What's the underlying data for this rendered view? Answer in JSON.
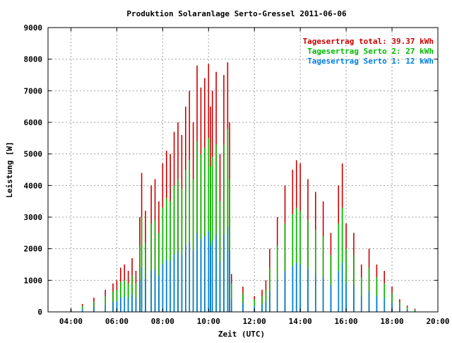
{
  "chart_data": {
    "type": "bar",
    "title": "Produktion Solaranlage Serto-Gressel 2011-06-06",
    "xlabel": "Zeit (UTC)",
    "ylabel": "Leistung [W]",
    "xlim_hours": [
      3,
      20
    ],
    "ylim": [
      0,
      9000
    ],
    "x_ticks": [
      "04:00",
      "06:00",
      "08:00",
      "10:00",
      "12:00",
      "14:00",
      "16:00",
      "18:00",
      "20:00"
    ],
    "y_ticks": [
      "0",
      "1000",
      "2000",
      "3000",
      "4000",
      "5000",
      "6000",
      "7000",
      "8000",
      "9000"
    ],
    "grid": true,
    "legend_position": "top-right",
    "colors": {
      "total": "#cc0000",
      "serto2": "#00bb00",
      "serto1": "#0080e0",
      "axis": "#000000",
      "grid": "#a0a0a0"
    },
    "legend": [
      {
        "label": "Tagesertrag total: 39.37 kWh",
        "color": "#cc0000"
      },
      {
        "label": "Tagesertrag Serto 2: 27 kWh",
        "color": "#00bb00"
      },
      {
        "label": "Tagesertrag Serto 1: 12 kWh",
        "color": "#0080e0"
      }
    ],
    "series": [
      {
        "name": "Tagesertrag total",
        "color": "#cc0000",
        "x": [
          "04:00",
          "04:30",
          "05:00",
          "05:30",
          "05:50",
          "06:00",
          "06:10",
          "06:20",
          "06:30",
          "06:40",
          "06:50",
          "07:00",
          "07:05",
          "07:15",
          "07:30",
          "07:40",
          "07:50",
          "08:00",
          "08:10",
          "08:20",
          "08:30",
          "08:40",
          "08:50",
          "09:00",
          "09:10",
          "09:20",
          "09:30",
          "09:40",
          "09:50",
          "10:00",
          "10:05",
          "10:10",
          "10:20",
          "10:30",
          "10:40",
          "10:50",
          "10:55",
          "11:00",
          "11:30",
          "12:00",
          "12:20",
          "12:30",
          "12:40",
          "13:00",
          "13:20",
          "13:40",
          "13:50",
          "14:00",
          "14:20",
          "14:40",
          "15:00",
          "15:20",
          "15:40",
          "15:50",
          "16:00",
          "16:20",
          "16:40",
          "17:00",
          "17:20",
          "17:40",
          "18:00",
          "18:20",
          "18:40",
          "19:00"
        ],
        "values": [
          100,
          250,
          450,
          700,
          900,
          1000,
          1400,
          1500,
          1300,
          1700,
          1300,
          3000,
          4400,
          3200,
          4000,
          4200,
          3500,
          4700,
          5100,
          5000,
          5700,
          6000,
          5600,
          6500,
          7000,
          6000,
          7800,
          7100,
          7400,
          7850,
          6500,
          7000,
          7600,
          5000,
          7500,
          7900,
          6000,
          1200,
          800,
          500,
          700,
          1000,
          2000,
          3000,
          4000,
          4500,
          4800,
          4700,
          4200,
          3800,
          3500,
          2500,
          4000,
          4700,
          2800,
          2500,
          1500,
          2000,
          1500,
          1300,
          800,
          400,
          200,
          100
        ]
      },
      {
        "name": "Tagesertrag Serto 2",
        "color": "#00bb00",
        "x": [
          "04:00",
          "04:30",
          "05:00",
          "05:30",
          "05:50",
          "06:00",
          "06:10",
          "06:20",
          "06:30",
          "06:40",
          "06:50",
          "07:00",
          "07:05",
          "07:15",
          "07:30",
          "07:40",
          "07:50",
          "08:00",
          "08:10",
          "08:20",
          "08:30",
          "08:40",
          "08:50",
          "09:00",
          "09:10",
          "09:20",
          "09:30",
          "09:40",
          "09:50",
          "10:00",
          "10:05",
          "10:10",
          "10:20",
          "10:30",
          "10:40",
          "10:50",
          "10:55",
          "11:00",
          "11:30",
          "12:00",
          "12:20",
          "12:30",
          "12:40",
          "13:00",
          "13:20",
          "13:40",
          "13:50",
          "14:00",
          "14:20",
          "14:40",
          "15:00",
          "15:20",
          "15:40",
          "15:50",
          "16:00",
          "16:20",
          "16:40",
          "17:00",
          "17:20",
          "17:40",
          "18:00",
          "18:20",
          "18:40",
          "19:00"
        ],
        "values": [
          80,
          180,
          320,
          500,
          650,
          700,
          950,
          1000,
          900,
          1150,
          900,
          2100,
          3000,
          2200,
          2800,
          2900,
          2500,
          3300,
          3600,
          3500,
          4000,
          4200,
          3900,
          4500,
          4800,
          4200,
          5400,
          5000,
          5200,
          5500,
          4600,
          4900,
          5300,
          3500,
          5300,
          5800,
          4200,
          900,
          600,
          400,
          500,
          700,
          1400,
          2100,
          2800,
          3100,
          3300,
          3200,
          2900,
          2600,
          2400,
          1800,
          2800,
          3300,
          2000,
          1800,
          1100,
          1400,
          1100,
          900,
          600,
          300,
          150,
          70
        ]
      },
      {
        "name": "Tagesertrag Serto 1",
        "color": "#0080e0",
        "x": [
          "04:00",
          "04:30",
          "05:00",
          "05:30",
          "05:50",
          "06:00",
          "06:10",
          "06:20",
          "06:30",
          "06:40",
          "06:50",
          "07:00",
          "07:05",
          "07:15",
          "07:30",
          "07:40",
          "07:50",
          "08:00",
          "08:10",
          "08:20",
          "08:30",
          "08:40",
          "08:50",
          "09:00",
          "09:10",
          "09:20",
          "09:30",
          "09:40",
          "09:50",
          "10:00",
          "10:05",
          "10:10",
          "10:20",
          "10:30",
          "10:40",
          "10:50",
          "10:55",
          "11:00",
          "11:30",
          "12:00",
          "12:20",
          "12:30",
          "12:40",
          "13:00",
          "13:20",
          "13:40",
          "13:50",
          "14:00",
          "14:20",
          "14:40",
          "15:00",
          "15:20",
          "15:40",
          "15:50",
          "16:00",
          "16:20",
          "16:40",
          "17:00",
          "17:20",
          "17:40",
          "18:00",
          "18:20",
          "18:40",
          "19:00"
        ],
        "values": [
          40,
          90,
          150,
          230,
          300,
          330,
          450,
          480,
          430,
          550,
          430,
          1000,
          1400,
          1050,
          1300,
          1350,
          1150,
          1500,
          1650,
          1600,
          1800,
          1900,
          1800,
          2100,
          2200,
          1950,
          2500,
          2300,
          2400,
          2550,
          2100,
          2250,
          2450,
          1600,
          2450,
          2700,
          1950,
          400,
          280,
          180,
          230,
          320,
          650,
          1000,
          1300,
          1450,
          1550,
          1500,
          1350,
          1200,
          1100,
          850,
          1300,
          1550,
          900,
          850,
          500,
          650,
          500,
          420,
          280,
          140,
          70,
          30
        ]
      }
    ]
  }
}
